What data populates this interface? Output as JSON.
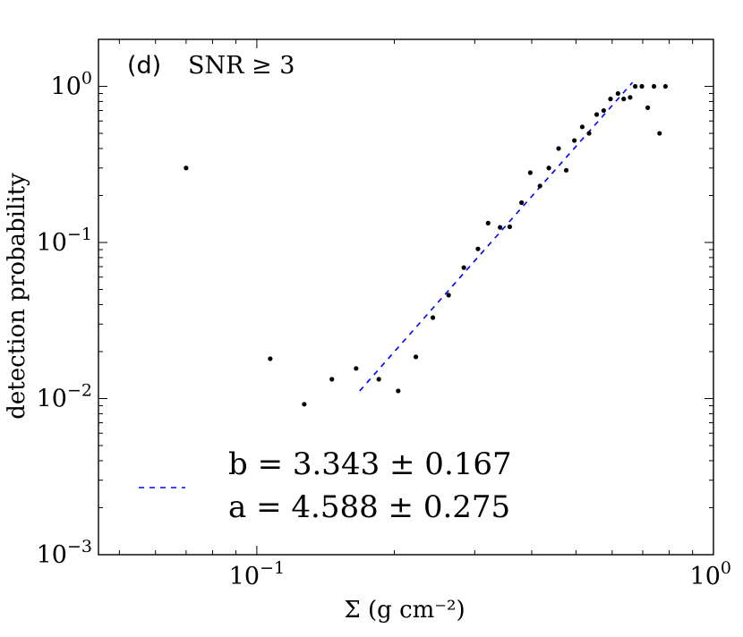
{
  "chart_data": {
    "type": "scatter",
    "panel_label": "(d)",
    "annotation": "SNR ≥ 3",
    "xlabel": "Σ (g cm⁻²)",
    "ylabel": "detection probability",
    "xscale": "log",
    "yscale": "log",
    "xlim": [
      0.045,
      1.0
    ],
    "ylim": [
      0.001,
      2.0
    ],
    "x_ticks": [
      {
        "value": 0.1,
        "base": "10",
        "exp": "−1"
      },
      {
        "value": 1.0,
        "base": "10",
        "exp": "0"
      }
    ],
    "y_ticks": [
      {
        "value": 0.001,
        "base": "10",
        "exp": "−3"
      },
      {
        "value": 0.01,
        "base": "10",
        "exp": "−2"
      },
      {
        "value": 0.1,
        "base": "10",
        "exp": "−1"
      },
      {
        "value": 1.0,
        "base": "10",
        "exp": "0"
      }
    ],
    "points": {
      "x": [
        0.07,
        0.107,
        0.127,
        0.146,
        0.165,
        0.185,
        0.204,
        0.223,
        0.243,
        0.263,
        0.284,
        0.305,
        0.321,
        0.341,
        0.358,
        0.38,
        0.397,
        0.417,
        0.436,
        0.458,
        0.476,
        0.496,
        0.516,
        0.534,
        0.555,
        0.575,
        0.595,
        0.618,
        0.636,
        0.657,
        0.674,
        0.697,
        0.718,
        0.741,
        0.762,
        0.785
      ],
      "y": [
        0.3,
        0.018,
        0.0092,
        0.0133,
        0.0156,
        0.0133,
        0.0112,
        0.0185,
        0.033,
        0.046,
        0.069,
        0.091,
        0.133,
        0.125,
        0.126,
        0.18,
        0.28,
        0.23,
        0.3,
        0.4,
        0.29,
        0.45,
        0.55,
        0.5,
        0.66,
        0.7,
        0.83,
        0.9,
        0.83,
        0.85,
        1.0,
        1.0,
        0.73,
        1.0,
        0.5,
        1.0
      ]
    },
    "fit": {
      "style": "dashed",
      "color": "#0000ff",
      "x": [
        0.168,
        0.665
      ],
      "y": [
        0.0112,
        1.06
      ],
      "legend_lines": [
        "b = 3.343 ± 0.167",
        "a = 4.588 ± 0.275"
      ]
    },
    "grid": false,
    "legend_position": "lower-left"
  }
}
